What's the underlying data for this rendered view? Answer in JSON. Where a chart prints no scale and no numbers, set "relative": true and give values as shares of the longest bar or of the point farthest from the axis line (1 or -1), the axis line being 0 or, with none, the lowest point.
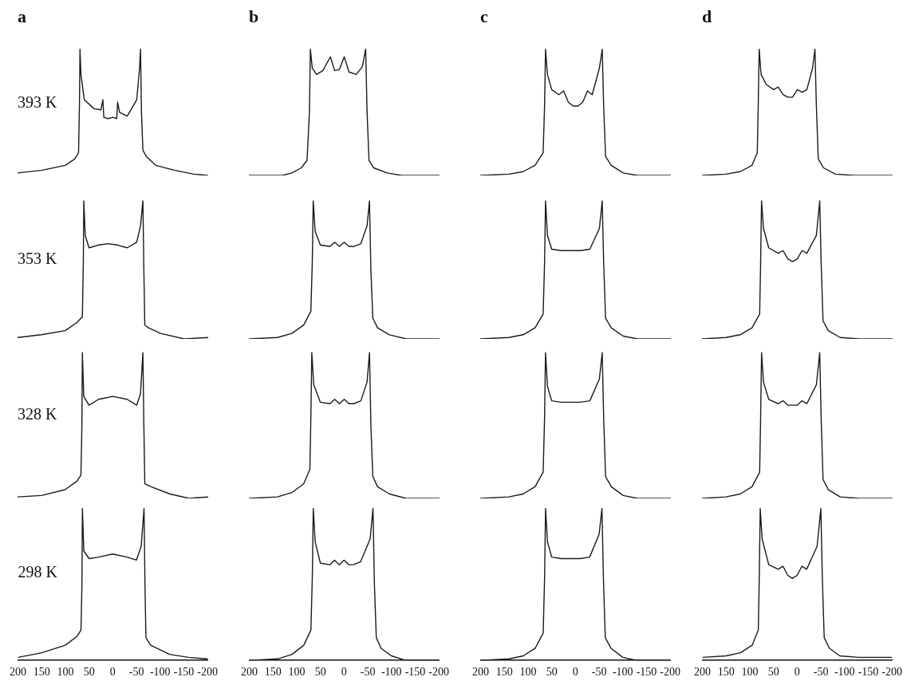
{
  "chart_data": [
    {
      "type": "line",
      "title": "a",
      "ylabel": "393 K",
      "relative": true,
      "xlim": [
        200,
        -200
      ],
      "tick_labels": false,
      "color": "#1a1a1a",
      "x": [
        200,
        150,
        100,
        80,
        72,
        70,
        69,
        67,
        60,
        40,
        25,
        21,
        19,
        10,
        0,
        -8,
        -10,
        -14,
        -30,
        -50,
        -56,
        -58,
        -60,
        -63,
        -70,
        -90,
        -130,
        -170,
        -200
      ],
      "values": [
        0.02,
        0.04,
        0.08,
        0.13,
        0.18,
        0.6,
        1,
        0.8,
        0.6,
        0.53,
        0.52,
        0.6,
        0.46,
        0.45,
        0.46,
        0.45,
        0.58,
        0.5,
        0.47,
        0.6,
        0.85,
        1,
        0.5,
        0.2,
        0.15,
        0.08,
        0.04,
        0.01,
        0
      ]
    },
    {
      "type": "line",
      "title": "b",
      "relative": true,
      "xlim": [
        200,
        -200
      ],
      "tick_labels": false,
      "color": "#1a1a1a",
      "x": [
        200,
        130,
        110,
        90,
        78,
        73,
        71,
        67,
        58,
        45,
        29,
        20,
        10,
        0,
        -10,
        -25,
        -38,
        -45,
        -48,
        -52,
        -62,
        -90,
        -120,
        -200
      ],
      "values": [
        0,
        0,
        0.02,
        0.06,
        0.12,
        0.5,
        1,
        0.85,
        0.8,
        0.83,
        0.94,
        0.83,
        0.84,
        0.94,
        0.82,
        0.8,
        0.86,
        1,
        0.5,
        0.12,
        0.06,
        0.02,
        0,
        0
      ]
    },
    {
      "type": "line",
      "title": "c",
      "relative": true,
      "xlim": [
        200,
        -200
      ],
      "tick_labels": false,
      "color": "#1a1a1a",
      "x": [
        200,
        140,
        110,
        85,
        68,
        65,
        63,
        59,
        50,
        35,
        25,
        15,
        5,
        -5,
        -15,
        -25,
        -35,
        -50,
        -56,
        -59,
        -63,
        -75,
        -100,
        -130,
        -200
      ],
      "values": [
        0,
        0.01,
        0.03,
        0.08,
        0.18,
        0.55,
        1,
        0.8,
        0.68,
        0.64,
        0.67,
        0.58,
        0.55,
        0.55,
        0.58,
        0.67,
        0.64,
        0.85,
        1,
        0.55,
        0.15,
        0.08,
        0.02,
        0,
        0
      ]
    },
    {
      "type": "line",
      "title": "d",
      "relative": true,
      "xlim": [
        200,
        -200
      ],
      "tick_labels": false,
      "color": "#1a1a1a",
      "x": [
        200,
        150,
        120,
        95,
        84,
        82,
        80,
        76,
        65,
        50,
        40,
        30,
        20,
        10,
        0,
        -10,
        -20,
        -32,
        -37,
        -40,
        -44,
        -55,
        -80,
        -120,
        -200
      ],
      "values": [
        0,
        0.01,
        0.03,
        0.08,
        0.18,
        0.55,
        1,
        0.8,
        0.72,
        0.68,
        0.7,
        0.64,
        0.62,
        0.62,
        0.68,
        0.66,
        0.68,
        0.85,
        1,
        0.55,
        0.13,
        0.06,
        0.01,
        0,
        0
      ]
    },
    {
      "type": "line",
      "ylabel": "353 K",
      "relative": true,
      "xlim": [
        200,
        -200
      ],
      "tick_labels": false,
      "color": "#1a1a1a",
      "x": [
        200,
        150,
        100,
        75,
        64,
        62,
        61,
        58,
        50,
        30,
        10,
        -10,
        -30,
        -50,
        -58,
        -63,
        -65,
        -67,
        -75,
        -100,
        -150,
        -200
      ],
      "values": [
        0.01,
        0.03,
        0.06,
        0.12,
        0.16,
        0.55,
        1,
        0.75,
        0.66,
        0.68,
        0.69,
        0.68,
        0.66,
        0.7,
        0.82,
        1,
        0.5,
        0.1,
        0.08,
        0.04,
        0,
        0.01
      ]
    },
    {
      "type": "line",
      "relative": true,
      "xlim": [
        200,
        -200
      ],
      "tick_labels": false,
      "color": "#1a1a1a",
      "x": [
        200,
        140,
        110,
        85,
        70,
        67,
        65,
        61,
        50,
        30,
        20,
        10,
        0,
        -10,
        -20,
        -35,
        -48,
        -53,
        -56,
        -60,
        -70,
        -95,
        -130,
        -200
      ],
      "values": [
        0,
        0.01,
        0.04,
        0.1,
        0.2,
        0.55,
        1,
        0.78,
        0.68,
        0.67,
        0.7,
        0.67,
        0.7,
        0.67,
        0.67,
        0.69,
        0.82,
        1,
        0.5,
        0.15,
        0.08,
        0.03,
        0,
        0
      ]
    },
    {
      "type": "line",
      "relative": true,
      "xlim": [
        200,
        -200
      ],
      "tick_labels": false,
      "color": "#1a1a1a",
      "x": [
        200,
        140,
        110,
        85,
        68,
        65,
        63,
        59,
        50,
        30,
        10,
        -10,
        -30,
        -50,
        -56,
        -59,
        -63,
        -75,
        -100,
        -130,
        -200
      ],
      "values": [
        0,
        0.01,
        0.03,
        0.08,
        0.18,
        0.55,
        1,
        0.75,
        0.65,
        0.64,
        0.64,
        0.64,
        0.65,
        0.8,
        1,
        0.55,
        0.15,
        0.08,
        0.02,
        0,
        0
      ]
    },
    {
      "type": "line",
      "relative": true,
      "xlim": [
        200,
        -200
      ],
      "tick_labels": false,
      "color": "#1a1a1a",
      "x": [
        200,
        150,
        120,
        95,
        79,
        77,
        75,
        71,
        60,
        40,
        30,
        20,
        10,
        0,
        -10,
        -20,
        -40,
        -47,
        -50,
        -54,
        -65,
        -90,
        -130,
        -200
      ],
      "values": [
        0,
        0.01,
        0.03,
        0.08,
        0.18,
        0.55,
        1,
        0.8,
        0.66,
        0.62,
        0.64,
        0.58,
        0.56,
        0.58,
        0.64,
        0.62,
        0.75,
        1,
        0.55,
        0.13,
        0.06,
        0.01,
        0,
        0
      ]
    },
    {
      "type": "line",
      "ylabel": "328 K",
      "relative": true,
      "xlim": [
        200,
        -200
      ],
      "tick_labels": false,
      "color": "#1a1a1a",
      "x": [
        200,
        150,
        100,
        75,
        67,
        65,
        64,
        61,
        50,
        30,
        0,
        -30,
        -50,
        -58,
        -63,
        -65,
        -67,
        -80,
        -120,
        -160,
        -200
      ],
      "values": [
        0.01,
        0.02,
        0.06,
        0.12,
        0.16,
        0.5,
        1,
        0.7,
        0.64,
        0.68,
        0.7,
        0.68,
        0.64,
        0.72,
        1,
        0.5,
        0.1,
        0.08,
        0.03,
        0,
        0.01
      ]
    },
    {
      "type": "line",
      "relative": true,
      "xlim": [
        200,
        -200
      ],
      "tick_labels": false,
      "color": "#1a1a1a",
      "x": [
        200,
        140,
        110,
        85,
        72,
        70,
        68,
        64,
        50,
        30,
        20,
        10,
        0,
        -10,
        -20,
        -35,
        -48,
        -53,
        -56,
        -60,
        -70,
        -95,
        -130,
        -200
      ],
      "values": [
        0,
        0.01,
        0.04,
        0.1,
        0.2,
        0.55,
        1,
        0.78,
        0.66,
        0.65,
        0.68,
        0.65,
        0.68,
        0.65,
        0.65,
        0.67,
        0.8,
        1,
        0.5,
        0.15,
        0.08,
        0.03,
        0,
        0
      ]
    },
    {
      "type": "line",
      "relative": true,
      "xlim": [
        200,
        -200
      ],
      "tick_labels": false,
      "color": "#1a1a1a",
      "x": [
        200,
        140,
        110,
        85,
        68,
        65,
        63,
        59,
        50,
        30,
        10,
        -10,
        -30,
        -50,
        -56,
        -59,
        -63,
        -75,
        -100,
        -130,
        -200
      ],
      "values": [
        0,
        0.01,
        0.03,
        0.08,
        0.18,
        0.55,
        1,
        0.77,
        0.67,
        0.66,
        0.66,
        0.66,
        0.67,
        0.82,
        1,
        0.55,
        0.15,
        0.08,
        0.02,
        0,
        0
      ]
    },
    {
      "type": "line",
      "relative": true,
      "xlim": [
        200,
        -200
      ],
      "tick_labels": false,
      "color": "#1a1a1a",
      "x": [
        200,
        150,
        120,
        95,
        79,
        77,
        75,
        71,
        60,
        40,
        30,
        20,
        10,
        0,
        -10,
        -20,
        -40,
        -47,
        -50,
        -54,
        -65,
        -90,
        -130,
        -200
      ],
      "values": [
        0,
        0.01,
        0.03,
        0.08,
        0.18,
        0.55,
        1,
        0.8,
        0.68,
        0.65,
        0.67,
        0.64,
        0.64,
        0.64,
        0.67,
        0.65,
        0.78,
        1,
        0.55,
        0.13,
        0.06,
        0.01,
        0,
        0
      ]
    },
    {
      "type": "line",
      "ylabel": "298 K",
      "relative": true,
      "xlim": [
        200,
        -200
      ],
      "xticks": [
        200,
        150,
        100,
        50,
        0,
        -50,
        -100,
        -150,
        -200
      ],
      "tick_labels": "x",
      "color": "#1a1a1a",
      "x": [
        200,
        150,
        100,
        75,
        67,
        65,
        64,
        61,
        50,
        30,
        0,
        -30,
        -50,
        -60,
        -66,
        -68,
        -70,
        -80,
        -120,
        -160,
        -200
      ],
      "values": [
        0.02,
        0.05,
        0.1,
        0.16,
        0.2,
        0.5,
        1,
        0.72,
        0.67,
        0.68,
        0.7,
        0.68,
        0.66,
        0.75,
        1,
        0.5,
        0.15,
        0.1,
        0.04,
        0.02,
        0.01
      ]
    },
    {
      "type": "line",
      "relative": true,
      "xlim": [
        200,
        -200
      ],
      "xticks": [
        200,
        150,
        100,
        50,
        0,
        -50,
        -100,
        -150,
        -200
      ],
      "tick_labels": "x",
      "color": "#1a1a1a",
      "x": [
        200,
        140,
        110,
        85,
        70,
        67,
        65,
        61,
        50,
        30,
        20,
        10,
        0,
        -10,
        -20,
        -35,
        -55,
        -61,
        -64,
        -68,
        -78,
        -100,
        -130,
        -200
      ],
      "values": [
        0,
        0.01,
        0.04,
        0.1,
        0.2,
        0.55,
        1,
        0.78,
        0.64,
        0.63,
        0.66,
        0.63,
        0.66,
        0.63,
        0.63,
        0.65,
        0.8,
        1,
        0.5,
        0.15,
        0.08,
        0.03,
        0,
        0
      ]
    },
    {
      "type": "line",
      "relative": true,
      "xlim": [
        200,
        -200
      ],
      "xticks": [
        200,
        150,
        100,
        50,
        0,
        -50,
        -100,
        -150,
        -200
      ],
      "tick_labels": "x",
      "color": "#1a1a1a",
      "x": [
        200,
        140,
        110,
        85,
        68,
        65,
        63,
        59,
        50,
        30,
        10,
        -10,
        -30,
        -50,
        -56,
        -59,
        -63,
        -75,
        -100,
        -130,
        -200
      ],
      "values": [
        0,
        0.01,
        0.03,
        0.08,
        0.18,
        0.55,
        1,
        0.78,
        0.68,
        0.67,
        0.67,
        0.67,
        0.68,
        0.83,
        1,
        0.55,
        0.15,
        0.08,
        0.02,
        0,
        0
      ]
    },
    {
      "type": "line",
      "relative": true,
      "xlim": [
        200,
        -200
      ],
      "xticks": [
        200,
        150,
        100,
        50,
        0,
        -50,
        -100,
        -150,
        -200
      ],
      "tick_labels": "x",
      "color": "#1a1a1a",
      "x": [
        200,
        150,
        120,
        95,
        82,
        80,
        78,
        74,
        60,
        40,
        30,
        20,
        10,
        0,
        -10,
        -20,
        -42,
        -50,
        -53,
        -57,
        -68,
        -90,
        -130,
        -200
      ],
      "values": [
        0.02,
        0.03,
        0.05,
        0.1,
        0.2,
        0.55,
        1,
        0.8,
        0.63,
        0.6,
        0.62,
        0.56,
        0.54,
        0.56,
        0.62,
        0.6,
        0.75,
        1,
        0.55,
        0.15,
        0.08,
        0.03,
        0.02,
        0.02
      ]
    }
  ]
}
